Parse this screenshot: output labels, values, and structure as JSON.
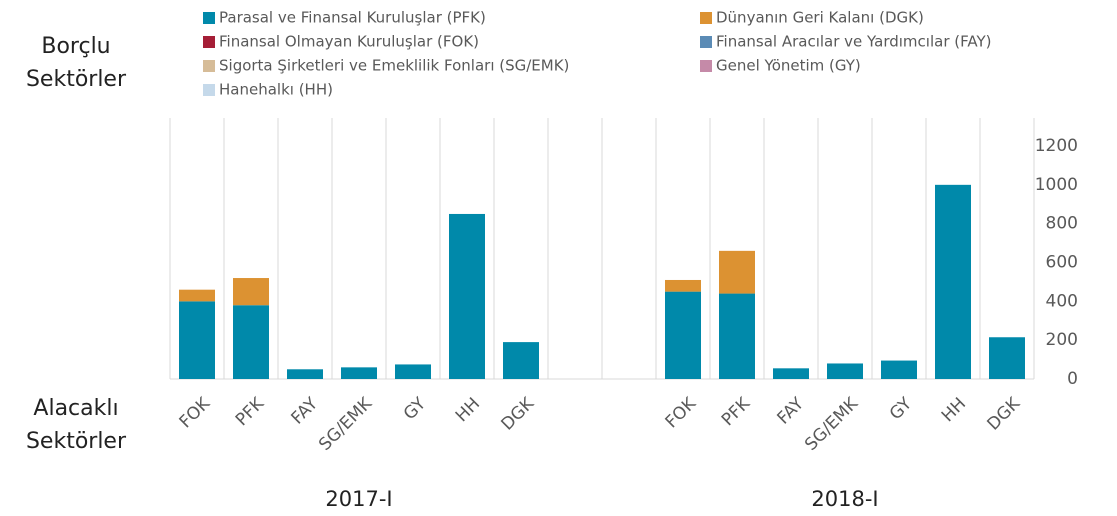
{
  "chart_data": {
    "type": "bar",
    "stacked": true,
    "y_axis_top_label": "Borçlu Sektörler",
    "x_axis_bottom_label": "Alacaklı Sektörler",
    "groups": [
      "2017-I",
      "2018-I"
    ],
    "categories": [
      "FOK",
      "PFK",
      "FAY",
      "SG/EMK",
      "GY",
      "HH",
      "DGK",
      null,
      null,
      "FOK",
      "PFK",
      "FAY",
      "SG/EMK",
      "GY",
      "HH",
      "DGK"
    ],
    "series": [
      {
        "name": "Parasal ve Finansal Kuruluşlar (PFK)",
        "color": "#0089aa",
        "values": [
          400,
          380,
          50,
          60,
          75,
          850,
          190,
          null,
          null,
          450,
          440,
          55,
          80,
          95,
          1000,
          215
        ]
      },
      {
        "name": "Dünyanın Geri Kalanı (DGK)",
        "color": "#dc9232",
        "values": [
          60,
          140,
          0,
          0,
          0,
          0,
          0,
          null,
          null,
          60,
          220,
          0,
          0,
          0,
          0,
          0
        ]
      },
      {
        "name": "Finansal Olmayan Kuruluşlar (FOK)",
        "color": "#a51e36",
        "values": [
          0,
          0,
          0,
          0,
          0,
          0,
          0,
          null,
          null,
          0,
          0,
          0,
          0,
          0,
          0,
          0
        ]
      },
      {
        "name": "Finansal Aracılar ve Yardımcılar (FAY)",
        "color": "#5b8bb5",
        "values": [
          0,
          0,
          0,
          0,
          0,
          0,
          0,
          null,
          null,
          0,
          0,
          0,
          0,
          0,
          0,
          0
        ]
      },
      {
        "name": " Sigorta Şirketleri ve Emeklilik Fonları (SG/EMK)",
        "color": "#d6bc98",
        "values": [
          0,
          0,
          0,
          0,
          0,
          0,
          0,
          null,
          null,
          0,
          0,
          0,
          0,
          0,
          0,
          0
        ]
      },
      {
        "name": "Genel Yönetim (GY)",
        "color": "#c58aa8",
        "values": [
          0,
          0,
          0,
          0,
          0,
          0,
          0,
          null,
          null,
          0,
          0,
          0,
          0,
          0,
          0,
          0
        ]
      },
      {
        "name": "Hanehalkı (HH)",
        "color": "#c5d9ea",
        "values": [
          0,
          0,
          0,
          0,
          0,
          0,
          0,
          null,
          null,
          0,
          0,
          0,
          0,
          0,
          0,
          0
        ]
      }
    ],
    "ylim": [
      0,
      1200
    ],
    "yticks": [
      0,
      200,
      400,
      600,
      800,
      1000,
      1200
    ],
    "y_axis_side": "right",
    "legend": "top"
  }
}
